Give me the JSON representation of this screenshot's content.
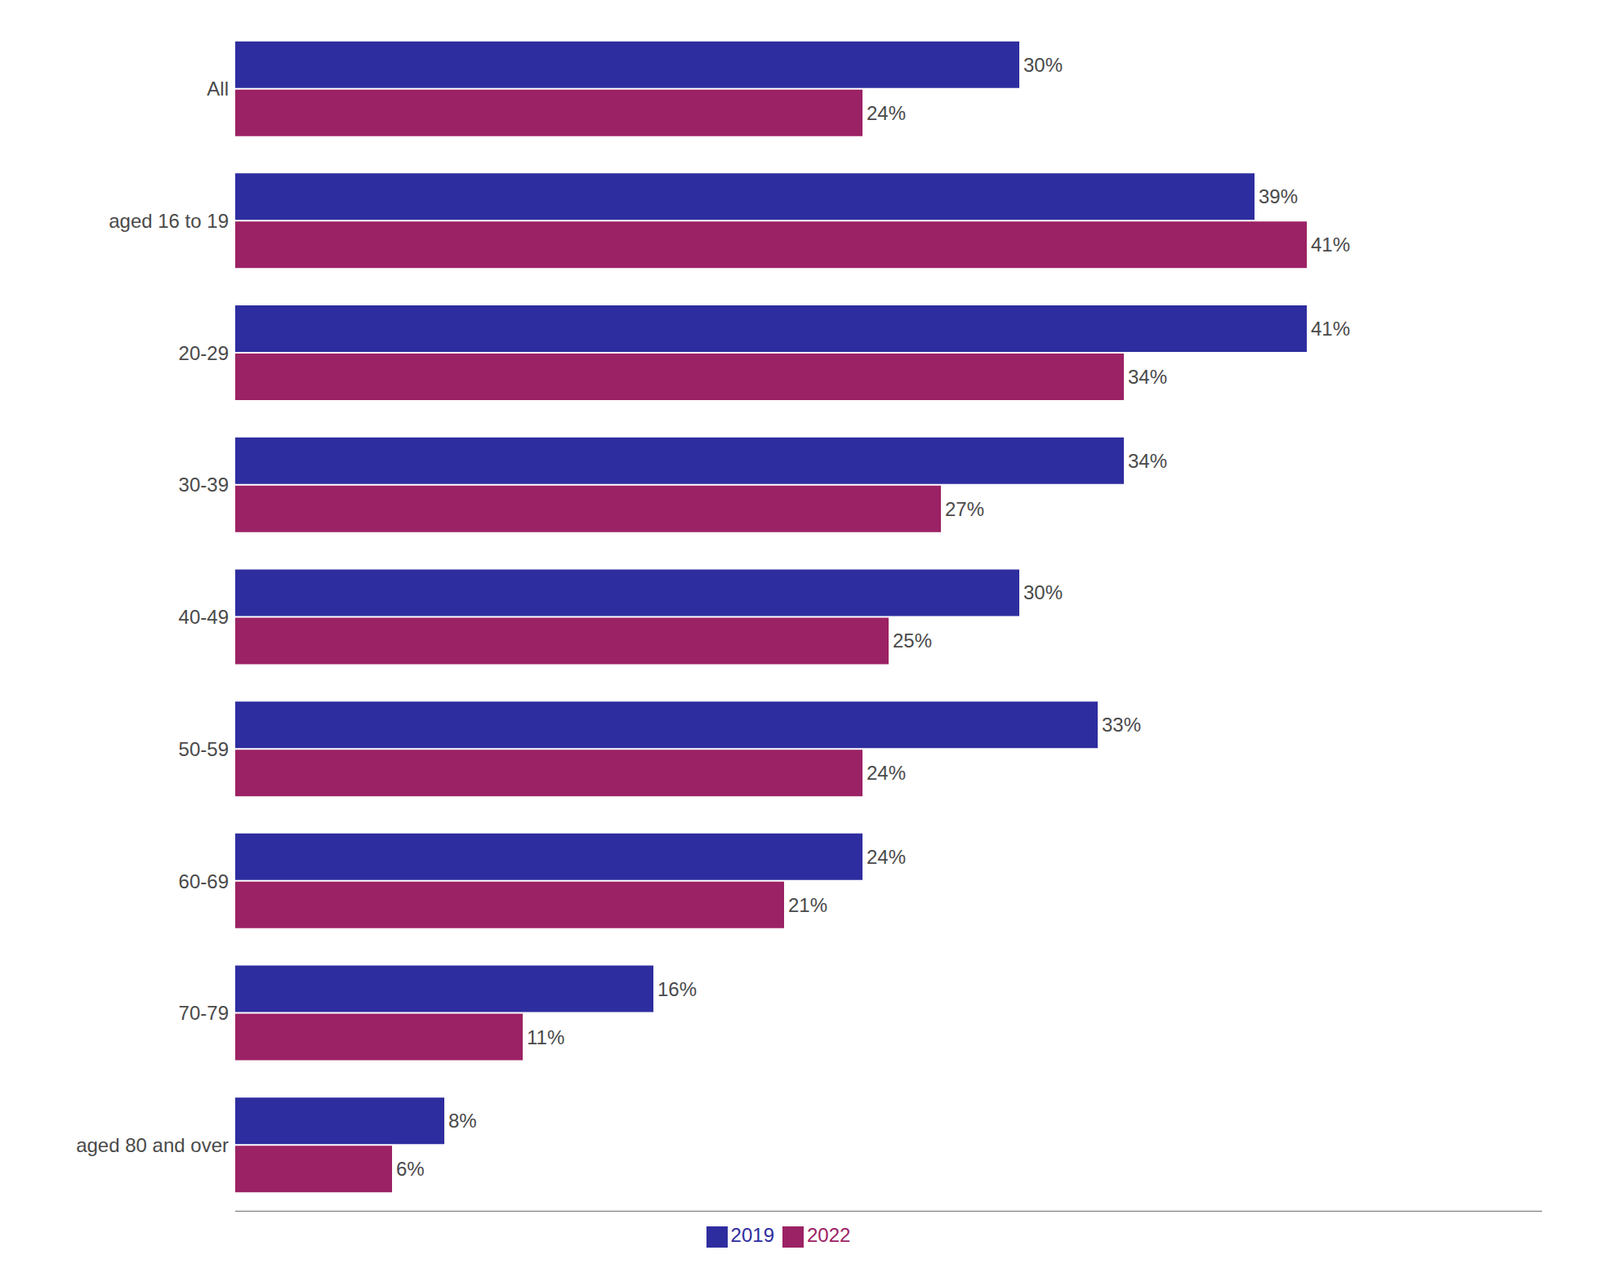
{
  "chart_data": {
    "type": "bar",
    "orientation": "horizontal",
    "categories": [
      "All",
      "aged 16 to 19",
      "20-29",
      "30-39",
      "40-49",
      "50-59",
      "60-69",
      "70-79",
      "aged 80 and over"
    ],
    "series": [
      {
        "name": "2019",
        "color": "#2E2D9F",
        "values": [
          30,
          39,
          41,
          34,
          30,
          33,
          24,
          16,
          8
        ],
        "value_labels": [
          "30%",
          "39%",
          "41%",
          "34%",
          "30%",
          "33%",
          "24%",
          "16%",
          "8%"
        ]
      },
      {
        "name": "2022",
        "color": "#9B2264",
        "values": [
          24,
          41,
          34,
          27,
          25,
          24,
          21,
          11,
          6
        ],
        "value_labels": [
          "24%",
          "41%",
          "34%",
          "27%",
          "25%",
          "24%",
          "21%",
          "11%",
          "6%"
        ]
      }
    ],
    "xlim": [
      0,
      50
    ],
    "data_labels": true,
    "tick_labels": "y",
    "legend": "bottom",
    "grid": false
  }
}
